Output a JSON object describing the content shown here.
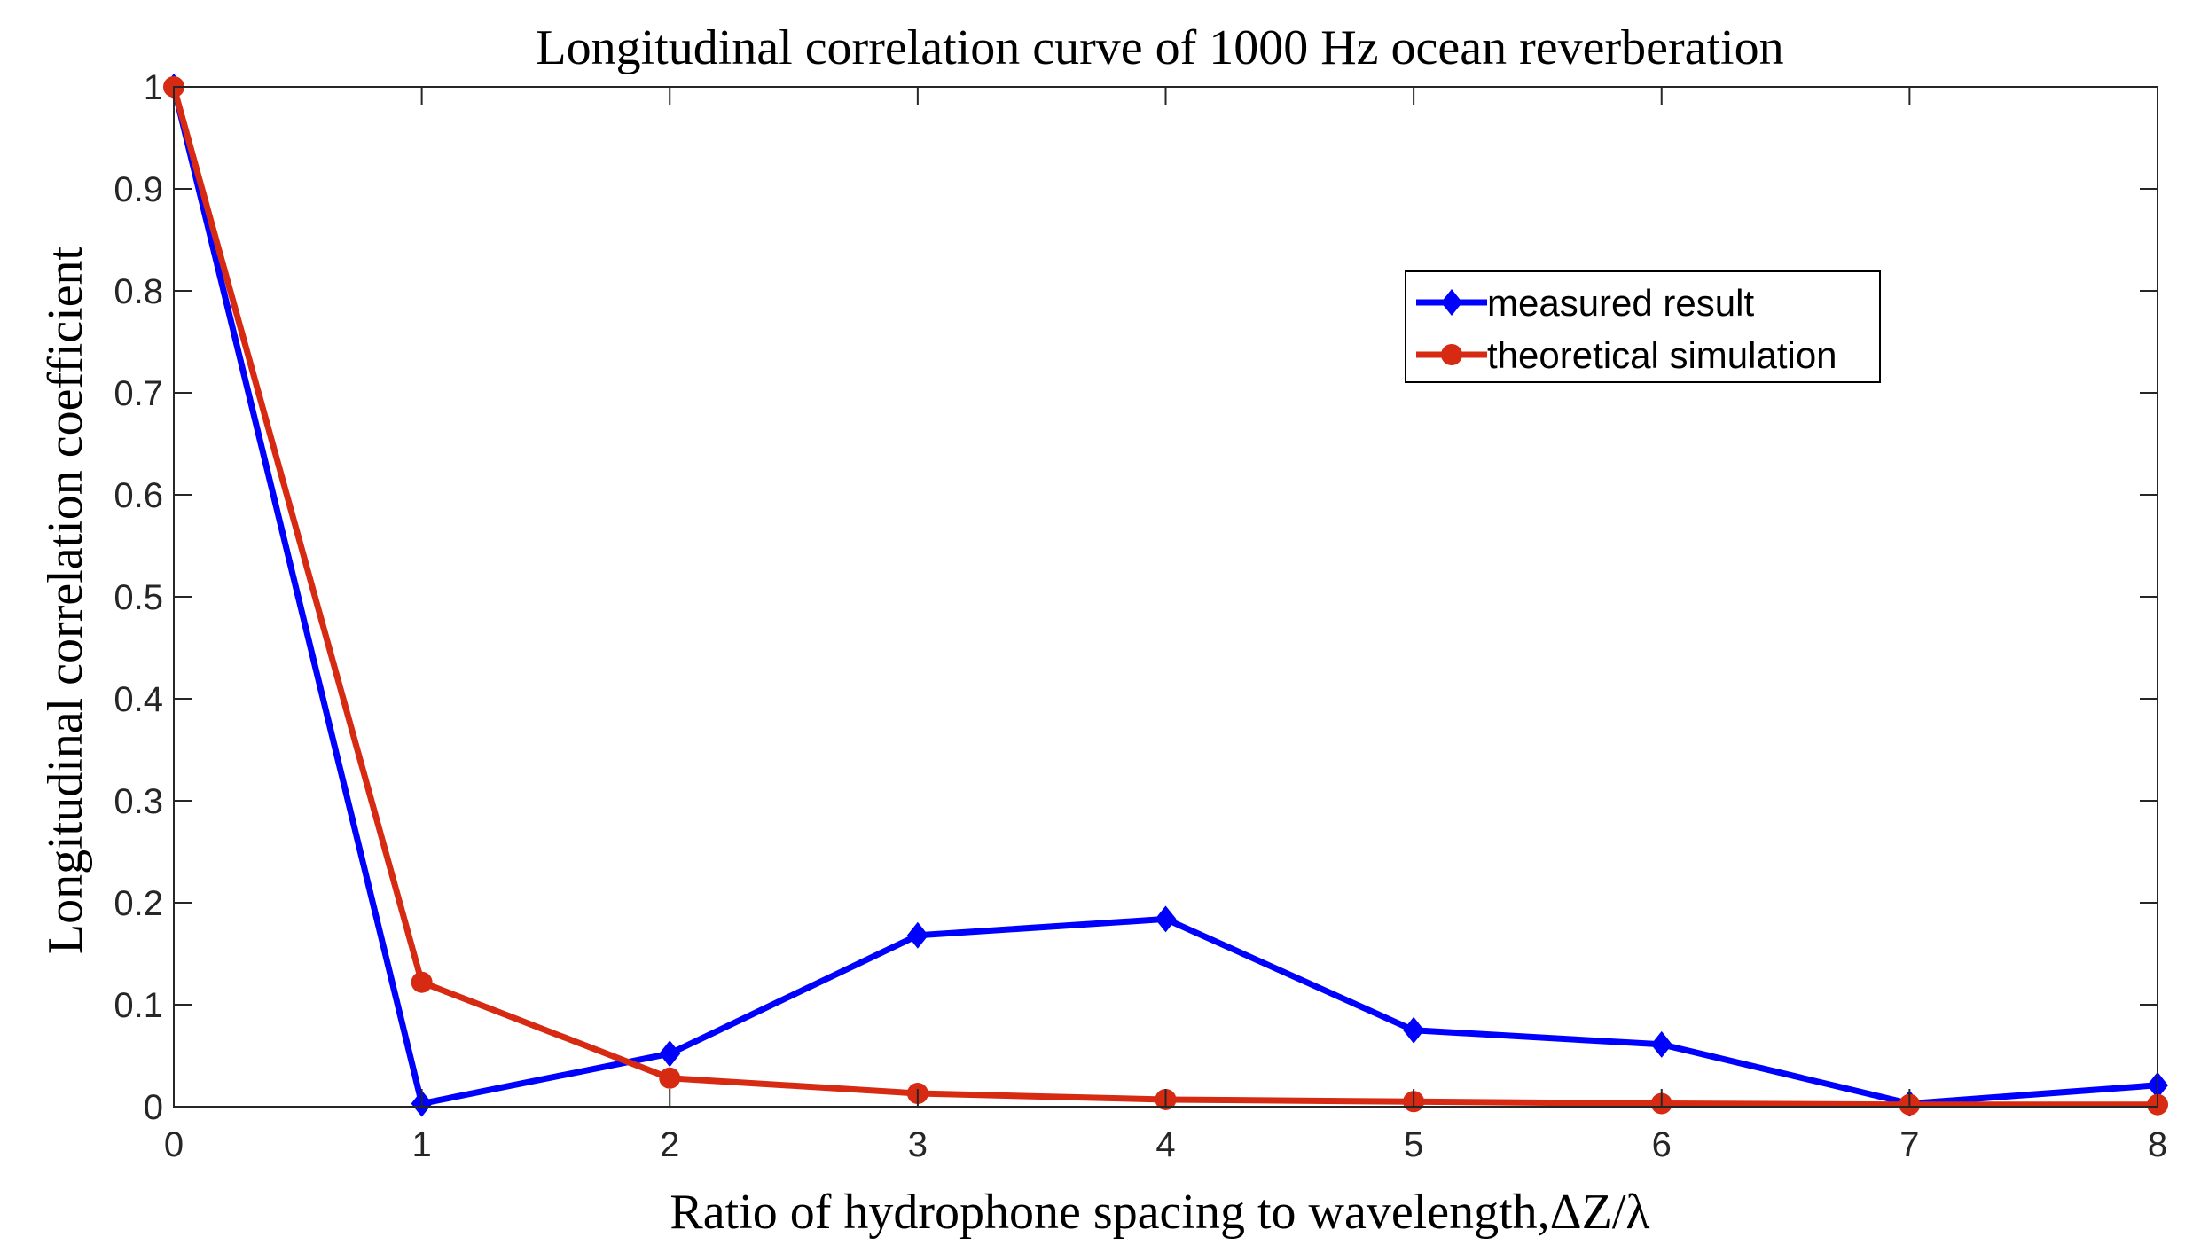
{
  "chart_data": {
    "type": "line",
    "title": "Longitudinal correlation curve of 1000 Hz ocean reverberation",
    "xlabel": "Ratio of hydrophone spacing to wavelength,ΔZ/λ",
    "ylabel": "Longitudinal correlation coefficient",
    "xlim": [
      0,
      8
    ],
    "ylim": [
      0,
      1
    ],
    "xticks": [
      0,
      1,
      2,
      3,
      4,
      5,
      6,
      7,
      8
    ],
    "xtick_labels": [
      "0",
      "1",
      "2",
      "3",
      "4",
      "5",
      "6",
      "7",
      "8"
    ],
    "yticks": [
      0,
      0.1,
      0.2,
      0.3,
      0.4,
      0.5,
      0.6,
      0.7,
      0.8,
      0.9,
      1
    ],
    "ytick_labels": [
      "0",
      "0.1",
      "0.2",
      "0.3",
      "0.4",
      "0.5",
      "0.6",
      "0.7",
      "0.8",
      "0.9",
      "1"
    ],
    "grid": false,
    "legend_position": "upper-right",
    "x": [
      0,
      1,
      2,
      3,
      4,
      5,
      6,
      7,
      8
    ],
    "series": [
      {
        "name": "measured result",
        "values": [
          1.0,
          0.003,
          0.052,
          0.168,
          0.184,
          0.075,
          0.061,
          0.003,
          0.021
        ],
        "color": "#0000FF",
        "marker": "diamond"
      },
      {
        "name": "theoretical simulation",
        "values": [
          1.0,
          0.122,
          0.028,
          0.013,
          0.007,
          0.005,
          0.003,
          0.002,
          0.002
        ],
        "color": "#D62A12",
        "marker": "circle"
      }
    ]
  }
}
